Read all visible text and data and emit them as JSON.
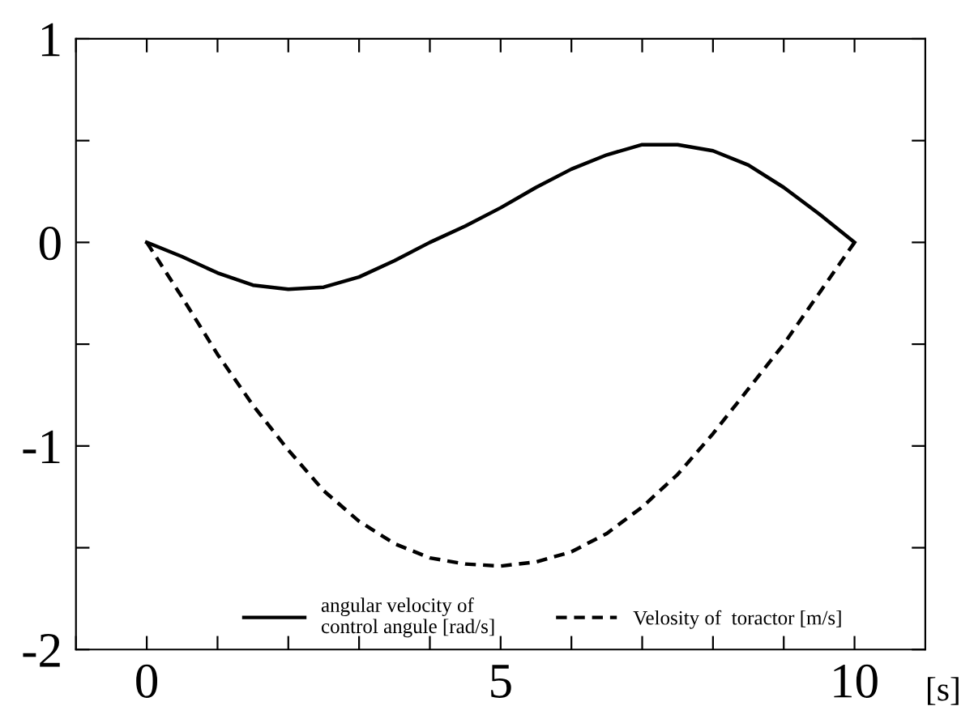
{
  "chart_data": {
    "type": "line",
    "xlabel": "[s]",
    "x": [
      0,
      0.5,
      1,
      1.5,
      2,
      2.5,
      3,
      3.5,
      4,
      4.5,
      5,
      5.5,
      6,
      6.5,
      7,
      7.5,
      8,
      8.5,
      9,
      9.5,
      10
    ],
    "series": [
      {
        "name": "angular velocity of\ncontrol angule [rad/s]",
        "color": "#000000",
        "line_style": "solid",
        "values": [
          0,
          -0.07,
          -0.15,
          -0.21,
          -0.23,
          -0.22,
          -0.17,
          -0.09,
          0.0,
          0.08,
          0.17,
          0.27,
          0.36,
          0.43,
          0.48,
          0.48,
          0.45,
          0.38,
          0.27,
          0.14,
          0
        ]
      },
      {
        "name": "Velosity of  toractor [m/s]",
        "color": "#000000",
        "line_style": "dashed",
        "values": [
          0,
          -0.27,
          -0.55,
          -0.8,
          -1.02,
          -1.22,
          -1.37,
          -1.48,
          -1.55,
          -1.58,
          -1.59,
          -1.57,
          -1.52,
          -1.43,
          -1.3,
          -1.14,
          -0.94,
          -0.72,
          -0.5,
          -0.25,
          0
        ]
      }
    ],
    "xlim": [
      -1,
      11
    ],
    "ylim": [
      -2,
      1
    ],
    "xticks": [
      {
        "value": -1,
        "label": null
      },
      0,
      {
        "value": 1,
        "label": null
      },
      {
        "value": 2,
        "label": null
      },
      {
        "value": 3,
        "label": null
      },
      {
        "value": 4,
        "label": null
      },
      5,
      {
        "value": 6,
        "label": null
      },
      {
        "value": 7,
        "label": null
      },
      {
        "value": 8,
        "label": null
      },
      {
        "value": 9,
        "label": null
      },
      10
    ],
    "yticks": [
      -2,
      {
        "value": -1.5,
        "label": null
      },
      -1,
      {
        "value": -0.5,
        "label": null
      },
      0,
      {
        "value": 0.5,
        "label": null
      },
      1
    ],
    "grid": false,
    "legend": "bottom",
    "marker": "none"
  }
}
